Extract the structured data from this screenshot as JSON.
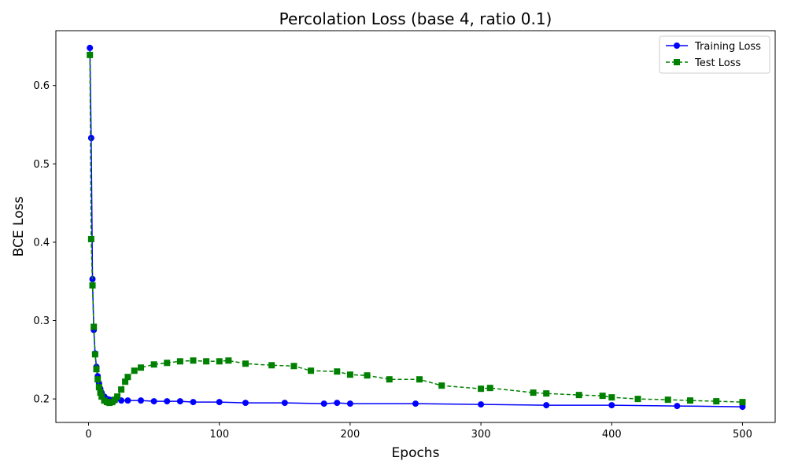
{
  "chart_data": {
    "type": "line",
    "title": "Percolation Loss (base 4, ratio 0.1)",
    "xlabel": "Epochs",
    "ylabel": "BCE Loss",
    "xlim": [
      -25,
      525
    ],
    "ylim": [
      0.17,
      0.67
    ],
    "x_ticks": [
      0,
      100,
      200,
      300,
      400,
      500
    ],
    "x_tick_labels": [
      "0",
      "100",
      "200",
      "300",
      "400",
      "500"
    ],
    "y_ticks": [
      0.2,
      0.3,
      0.4,
      0.5,
      0.6
    ],
    "y_tick_labels": [
      "0.2",
      "0.3",
      "0.4",
      "0.5",
      "0.6"
    ],
    "grid": false,
    "legend_position": "top-right",
    "series": [
      {
        "name": "Training Loss",
        "color": "#0000ff",
        "marker": "circle",
        "line_style": "solid",
        "x": [
          1,
          2,
          3,
          4,
          5,
          6,
          7,
          8,
          9,
          10,
          12,
          14,
          16,
          18,
          20,
          25,
          30,
          40,
          50,
          60,
          70,
          80,
          100,
          120,
          150,
          180,
          190,
          200,
          250,
          300,
          350,
          400,
          450,
          500
        ],
        "y": [
          0.648,
          0.533,
          0.353,
          0.288,
          0.258,
          0.241,
          0.229,
          0.22,
          0.213,
          0.208,
          0.203,
          0.2,
          0.199,
          0.198,
          0.198,
          0.198,
          0.198,
          0.198,
          0.197,
          0.197,
          0.197,
          0.196,
          0.196,
          0.195,
          0.195,
          0.194,
          0.195,
          0.194,
          0.194,
          0.193,
          0.192,
          0.192,
          0.191,
          0.19
        ]
      },
      {
        "name": "Test Loss",
        "color": "#008000",
        "marker": "square",
        "line_style": "dashed",
        "x": [
          1,
          2,
          3,
          4,
          5,
          6,
          7,
          8,
          9,
          10,
          12,
          14,
          16,
          18,
          20,
          22,
          25,
          28,
          30,
          35,
          40,
          50,
          60,
          70,
          80,
          90,
          100,
          107,
          120,
          140,
          157,
          170,
          190,
          200,
          213,
          230,
          253,
          270,
          300,
          307,
          340,
          350,
          375,
          393,
          400,
          420,
          443,
          460,
          480,
          500
        ],
        "y": [
          0.639,
          0.404,
          0.345,
          0.292,
          0.257,
          0.238,
          0.225,
          0.215,
          0.208,
          0.203,
          0.198,
          0.196,
          0.195,
          0.196,
          0.199,
          0.203,
          0.212,
          0.222,
          0.228,
          0.236,
          0.24,
          0.244,
          0.246,
          0.248,
          0.249,
          0.248,
          0.248,
          0.249,
          0.245,
          0.243,
          0.242,
          0.236,
          0.235,
          0.231,
          0.23,
          0.225,
          0.225,
          0.217,
          0.213,
          0.214,
          0.208,
          0.207,
          0.205,
          0.204,
          0.202,
          0.2,
          0.199,
          0.198,
          0.197,
          0.196
        ]
      }
    ]
  }
}
